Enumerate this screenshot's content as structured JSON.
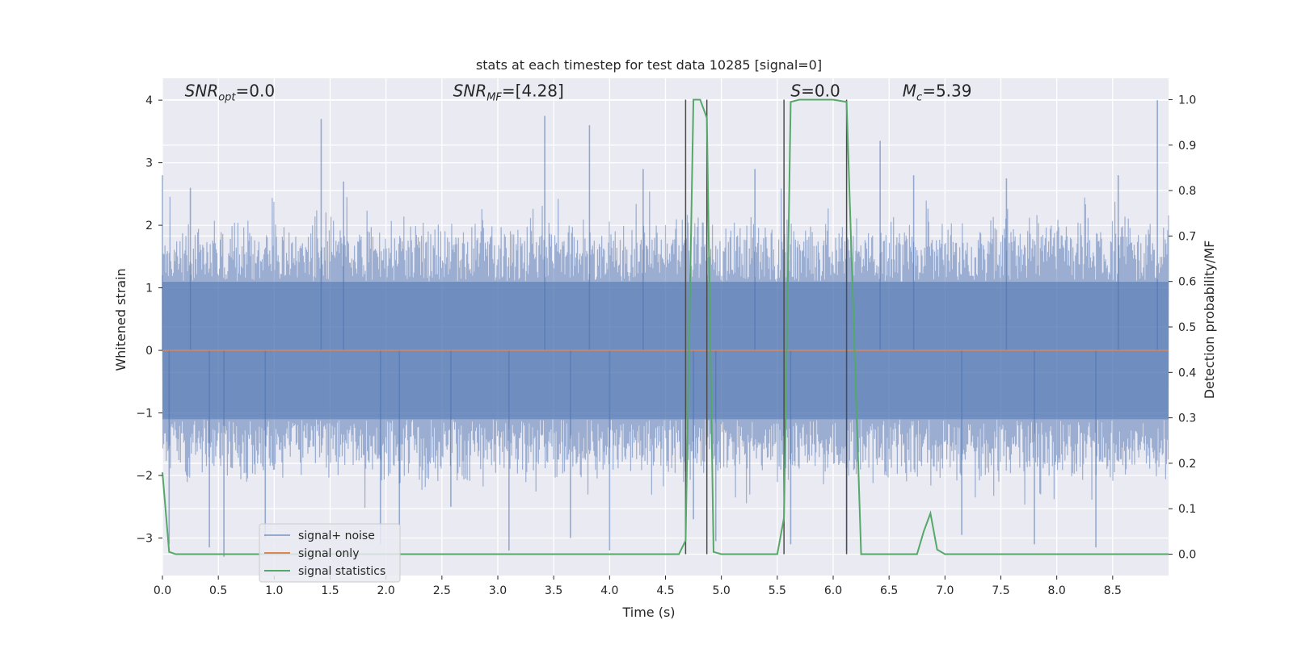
{
  "chart_data": {
    "type": "line",
    "title": "stats at each timestep for test data 10285 [signal=0]",
    "xlabel": "Time (s)",
    "ylabel": "Whitened strain",
    "ylabel_right": "Detection probability/MF",
    "xlim": [
      0.0,
      9.0
    ],
    "ylim": [
      -3.6,
      4.35
    ],
    "ylim_right": [
      -0.047,
      1.047
    ],
    "x_ticks": [
      0.0,
      0.5,
      1.0,
      1.5,
      2.0,
      2.5,
      3.0,
      3.5,
      4.0,
      4.5,
      5.0,
      5.5,
      6.0,
      6.5,
      7.0,
      7.5,
      8.0,
      8.5
    ],
    "x_tick_labels": [
      "0.0",
      "0.5",
      "1.0",
      "1.5",
      "2.0",
      "2.5",
      "3.0",
      "3.5",
      "4.0",
      "4.5",
      "5.0",
      "5.5",
      "6.0",
      "6.5",
      "7.0",
      "7.5",
      "8.0",
      "8.5"
    ],
    "y_ticks": [
      -3,
      -2,
      -1,
      0,
      1,
      2,
      3,
      4
    ],
    "y_tick_labels": [
      "−3",
      "−2",
      "−1",
      "0",
      "1",
      "2",
      "3",
      "4"
    ],
    "y_ticks_right": [
      0.0,
      0.1,
      0.2,
      0.3,
      0.4,
      0.5,
      0.6,
      0.7,
      0.8,
      0.9,
      1.0
    ],
    "y_tick_labels_right": [
      "0.0",
      "0.1",
      "0.2",
      "0.3",
      "0.4",
      "0.5",
      "0.6",
      "0.7",
      "0.8",
      "0.9",
      "1.0"
    ],
    "grid": true,
    "legend_position": "lower-left",
    "annotations": [
      {
        "text": "SNR_opt=0.0",
        "x": 0.2,
        "y": 4.1
      },
      {
        "text": "SNR_MF=[4.28]",
        "x": 2.6,
        "y": 4.1
      },
      {
        "text": "S=0.0",
        "x": 5.62,
        "y": 4.1
      },
      {
        "text": "M_c=5.39",
        "x": 6.62,
        "y": 4.1
      }
    ],
    "vertical_lines": [
      4.68,
      4.87,
      5.56,
      6.12
    ],
    "vertical_line_range": [
      0.0,
      1.0
    ],
    "noise_peaks": [
      {
        "x": 0.0,
        "y": 2.8
      },
      {
        "x": 0.06,
        "y": -3.1
      },
      {
        "x": 0.25,
        "y": 2.6
      },
      {
        "x": 0.42,
        "y": -3.15
      },
      {
        "x": 0.55,
        "y": -3.3
      },
      {
        "x": 0.92,
        "y": -3.0
      },
      {
        "x": 1.42,
        "y": 3.7
      },
      {
        "x": 1.62,
        "y": 2.7
      },
      {
        "x": 1.95,
        "y": -3.1
      },
      {
        "x": 2.12,
        "y": -2.8
      },
      {
        "x": 2.58,
        "y": -2.5
      },
      {
        "x": 3.1,
        "y": -3.2
      },
      {
        "x": 3.42,
        "y": 3.75
      },
      {
        "x": 3.65,
        "y": -3.0
      },
      {
        "x": 3.82,
        "y": 3.6
      },
      {
        "x": 4.0,
        "y": -3.2
      },
      {
        "x": 4.3,
        "y": 2.9
      },
      {
        "x": 4.75,
        "y": -2.7
      },
      {
        "x": 4.95,
        "y": -3.05
      },
      {
        "x": 5.3,
        "y": 2.9
      },
      {
        "x": 5.62,
        "y": -3.1
      },
      {
        "x": 6.12,
        "y": -3.2
      },
      {
        "x": 6.42,
        "y": 3.35
      },
      {
        "x": 6.72,
        "y": 2.8
      },
      {
        "x": 7.15,
        "y": -2.95
      },
      {
        "x": 7.55,
        "y": 2.75
      },
      {
        "x": 7.8,
        "y": -3.1
      },
      {
        "x": 8.35,
        "y": -3.15
      },
      {
        "x": 8.55,
        "y": 2.8
      },
      {
        "x": 8.9,
        "y": 4.0
      }
    ],
    "series": [
      {
        "name": "signal+ noise",
        "color": "#4c72b0",
        "axis": "left",
        "envelope": {
          "upper": 2.2,
          "lower": -2.2,
          "dense": 1.1
        }
      },
      {
        "name": "signal only",
        "color": "#dd8452",
        "axis": "left",
        "x": [
          0.0,
          9.0
        ],
        "y": [
          0.0,
          0.0
        ]
      },
      {
        "name": "signal statistics",
        "color": "#55a868",
        "axis": "right",
        "x": [
          0.0,
          0.06,
          0.12,
          0.5,
          1.0,
          2.0,
          3.0,
          4.0,
          4.5,
          4.62,
          4.68,
          4.75,
          4.81,
          4.87,
          4.93,
          5.0,
          5.3,
          5.5,
          5.56,
          5.62,
          5.7,
          6.0,
          6.12,
          6.25,
          6.5,
          6.75,
          6.81,
          6.87,
          6.93,
          7.0,
          7.5,
          8.0,
          8.5,
          9.0
        ],
        "y": [
          0.18,
          0.005,
          0.0,
          0.0,
          0.0,
          0.0,
          0.0,
          0.0,
          0.0,
          0.0,
          0.03,
          1.0,
          1.0,
          0.96,
          0.005,
          0.0,
          0.0,
          0.0,
          0.08,
          0.995,
          1.0,
          1.0,
          0.995,
          0.0,
          0.0,
          0.0,
          0.05,
          0.09,
          0.01,
          0.0,
          0.0,
          0.0,
          0.0,
          0.0
        ]
      }
    ]
  }
}
